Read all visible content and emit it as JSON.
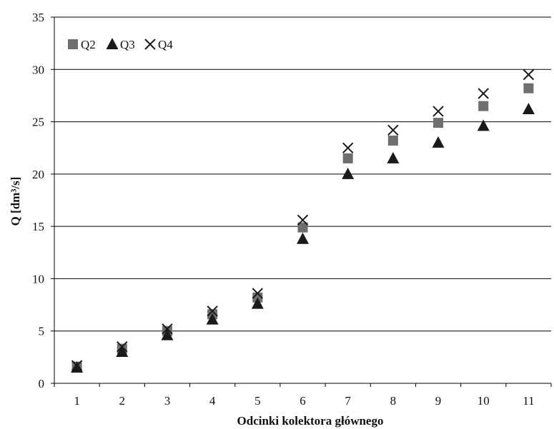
{
  "chart_data": {
    "type": "scatter",
    "xlabel": "Odcinki kolektora głównego",
    "ylabel": "Q [dm³/s]",
    "x": [
      1,
      2,
      3,
      4,
      5,
      6,
      7,
      8,
      9,
      10,
      11
    ],
    "x_tick_labels": [
      "1",
      "2",
      "3",
      "4",
      "5",
      "6",
      "7",
      "8",
      "9",
      "10",
      "11"
    ],
    "ylim": [
      0,
      35
    ],
    "y_ticks": [
      0,
      5,
      10,
      15,
      20,
      25,
      30,
      35
    ],
    "grid": "horizontal",
    "legend": "top-left",
    "series": [
      {
        "name": "Q2",
        "marker": "square",
        "color": "#6e6e6e",
        "values": [
          1.6,
          3.3,
          5.0,
          6.6,
          8.2,
          14.9,
          21.5,
          23.2,
          24.9,
          26.5,
          28.2
        ]
      },
      {
        "name": "Q3",
        "marker": "triangle",
        "color": "#1a1a1a",
        "values": [
          1.5,
          3.0,
          4.6,
          6.1,
          7.6,
          13.8,
          20.0,
          21.5,
          23.0,
          24.6,
          26.2
        ]
      },
      {
        "name": "Q4",
        "marker": "x",
        "color": "#1a1a1a",
        "values": [
          1.7,
          3.5,
          5.2,
          6.9,
          8.6,
          15.6,
          22.5,
          24.2,
          26.0,
          27.7,
          29.5
        ]
      }
    ]
  }
}
